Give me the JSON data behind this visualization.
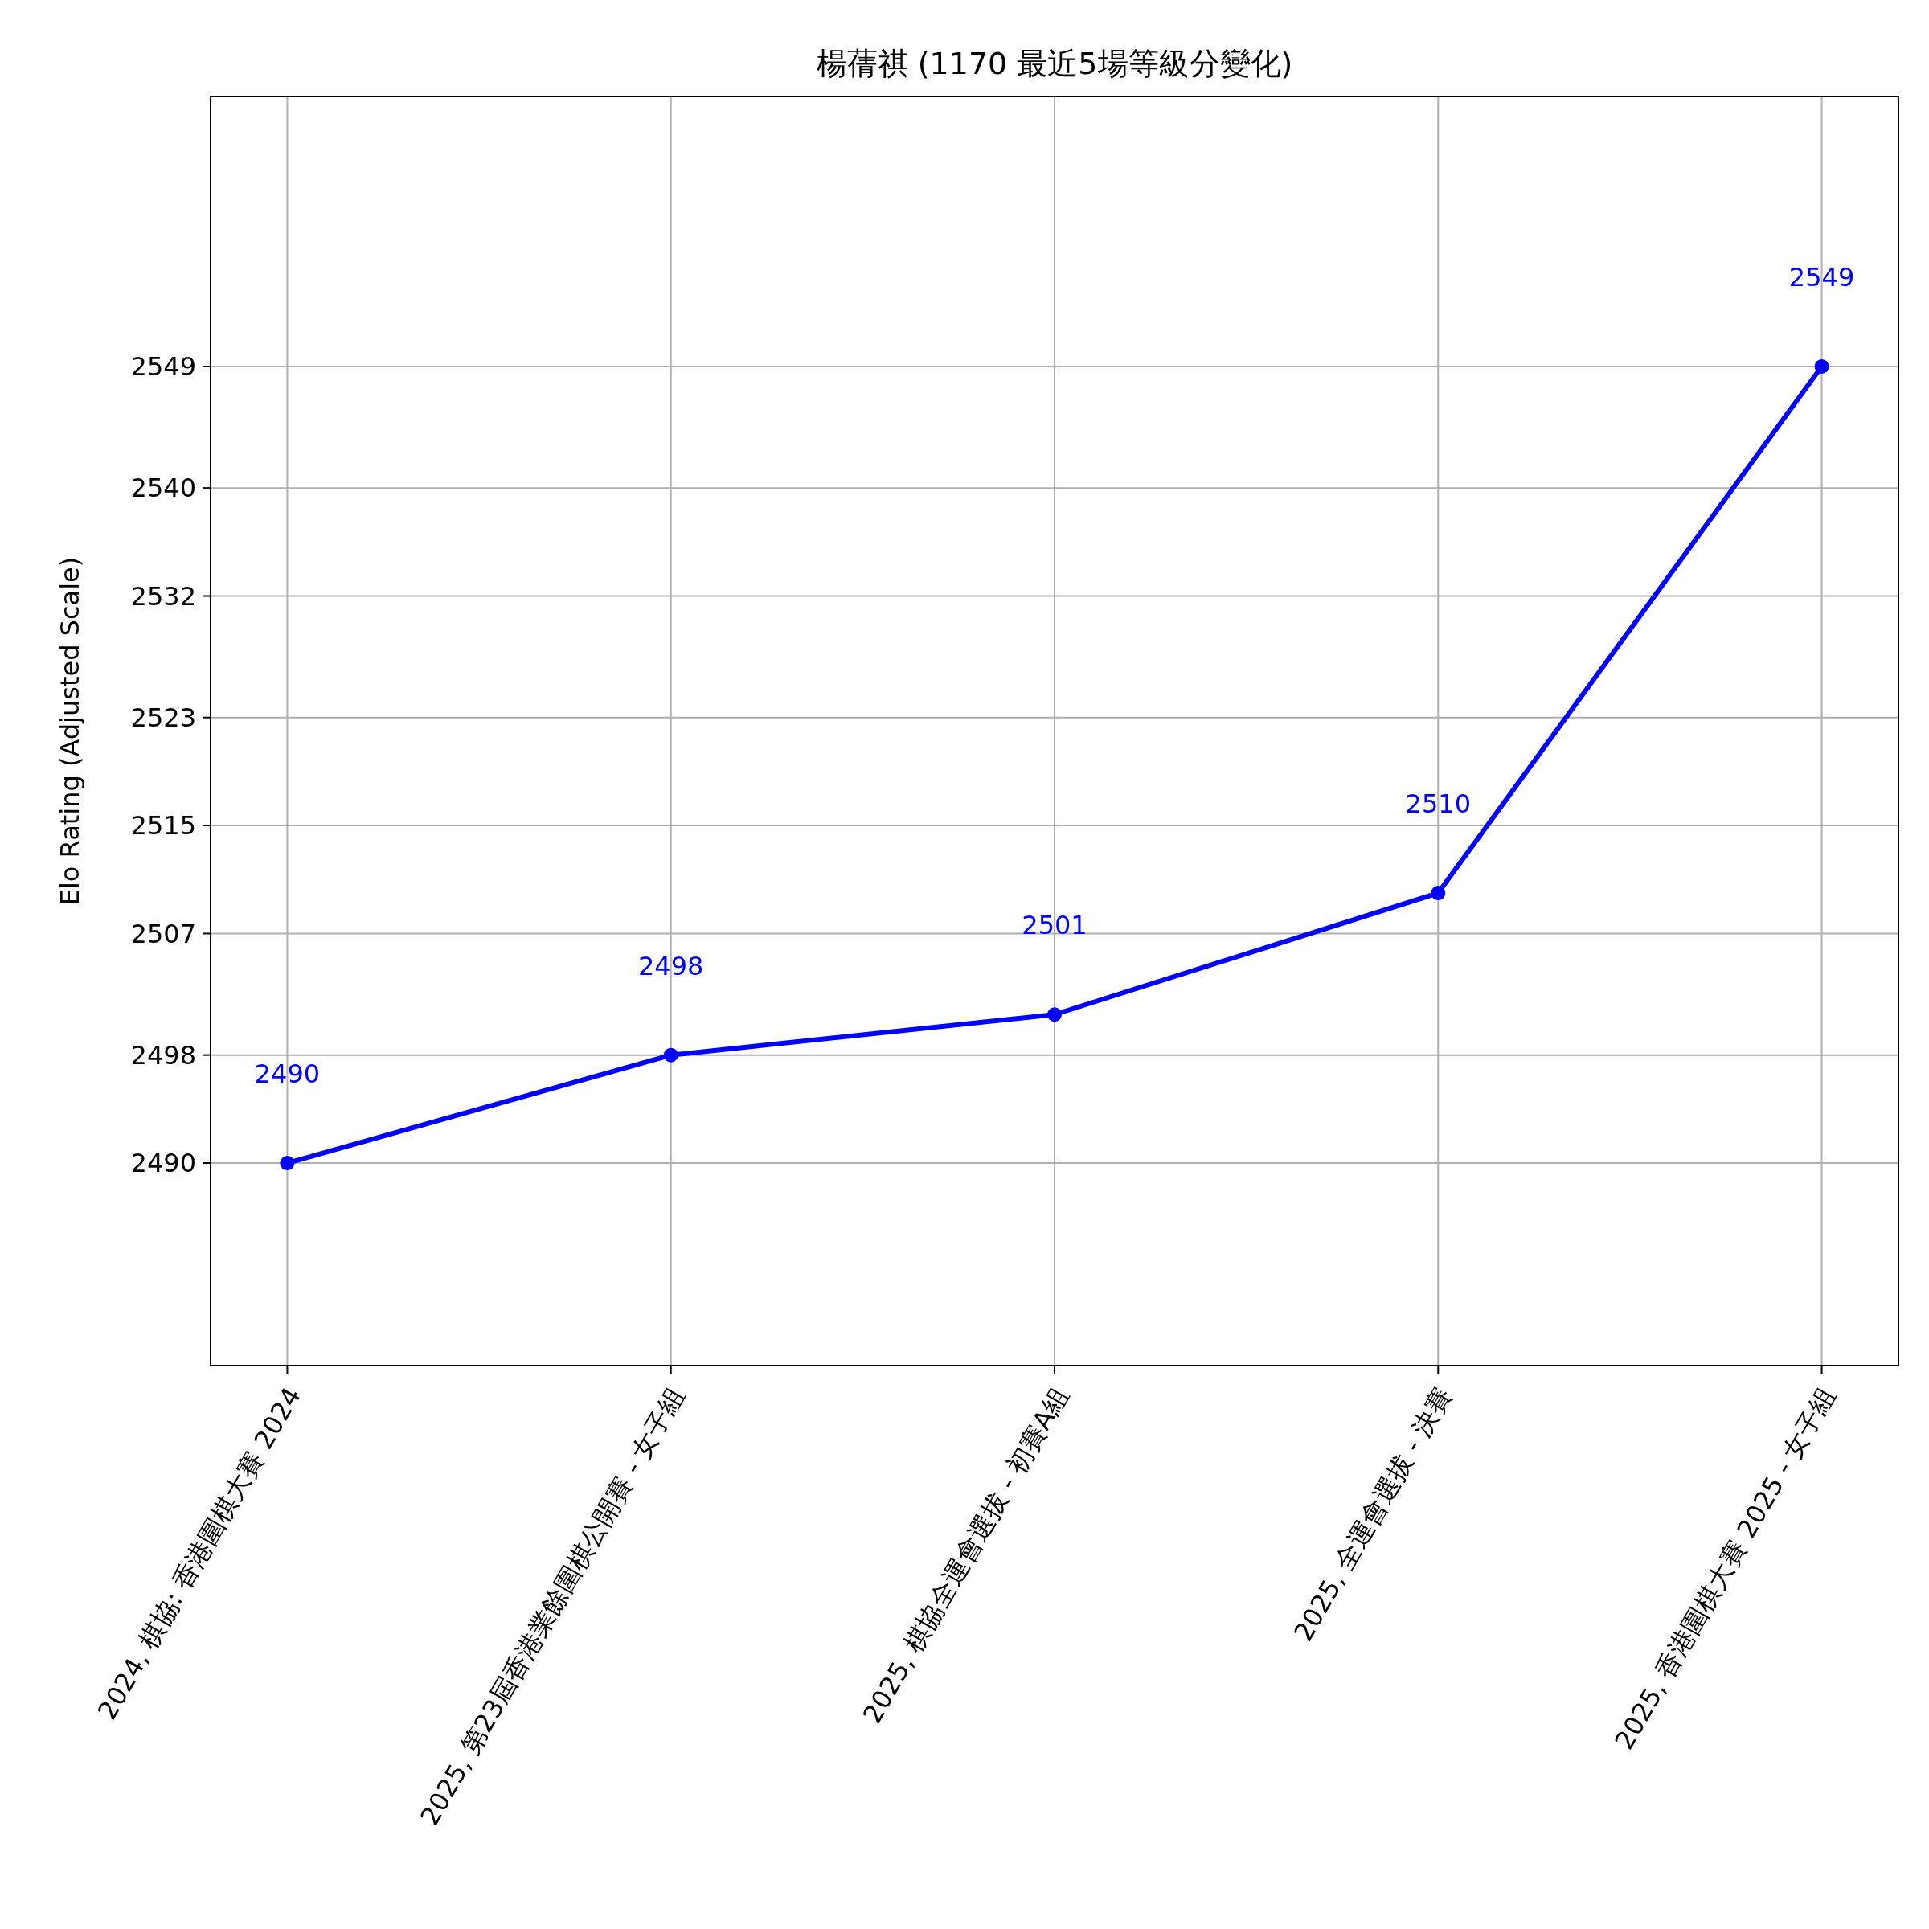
{
  "chart_data": {
    "type": "line",
    "title": "楊蒨祺 (1170 最近5場等級分變化)",
    "ylabel": "Elo Rating (Adjusted Scale)",
    "categories": [
      "2024, 棋協: 香港圍棋大賽 2024",
      "2025, 第23屆香港業餘圍棋公開賽 - 女子組",
      "2025, 棋協全運會選拔 - 初賽A組",
      "2025, 全運會選拔 - 決賽",
      "2025, 香港圍棋大賽 2025 - 女子組"
    ],
    "series": [
      {
        "color": "#0000ff",
        "values": [
          2490,
          2498,
          2501,
          2510,
          2549
        ]
      }
    ],
    "ylim": [
      2475,
      2569
    ],
    "yticks": [
      2490,
      2498,
      2507,
      2515,
      2523,
      2532,
      2540,
      2549
    ],
    "grid": true,
    "marker": "circle",
    "line_style": "solid",
    "data_labels": true
  }
}
